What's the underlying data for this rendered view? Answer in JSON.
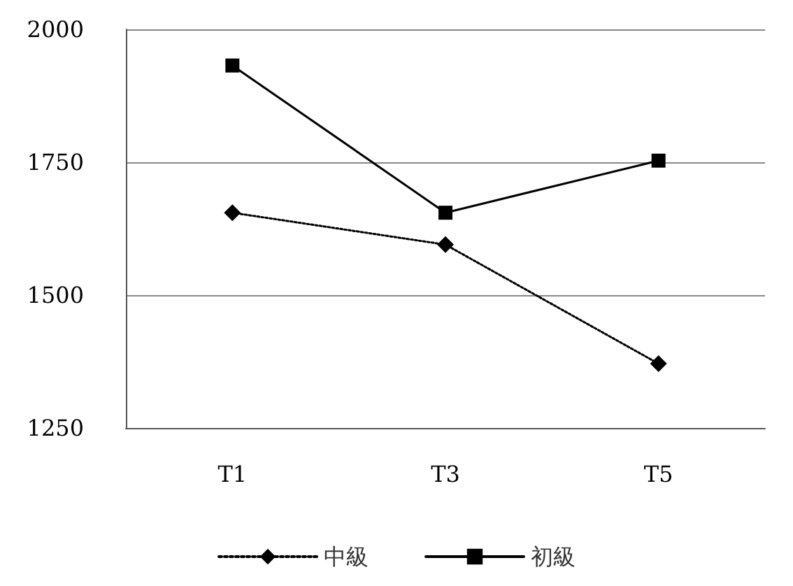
{
  "chart_data": {
    "type": "line",
    "categories": [
      "T1",
      "T3",
      "T5"
    ],
    "series": [
      {
        "name": "中級",
        "color": "#000000",
        "values": [
          1655,
          1595,
          1371
        ],
        "marker": "diamond",
        "line_style": "dotted"
      },
      {
        "name": "初級",
        "color": "#000000",
        "values": [
          1932,
          1655,
          1753
        ],
        "marker": "square",
        "line_style": "solid"
      }
    ],
    "ylim": [
      1250,
      2000
    ],
    "yticks": [
      1250,
      1500,
      1750,
      2000
    ],
    "grid": "y",
    "legend": "bottom"
  }
}
